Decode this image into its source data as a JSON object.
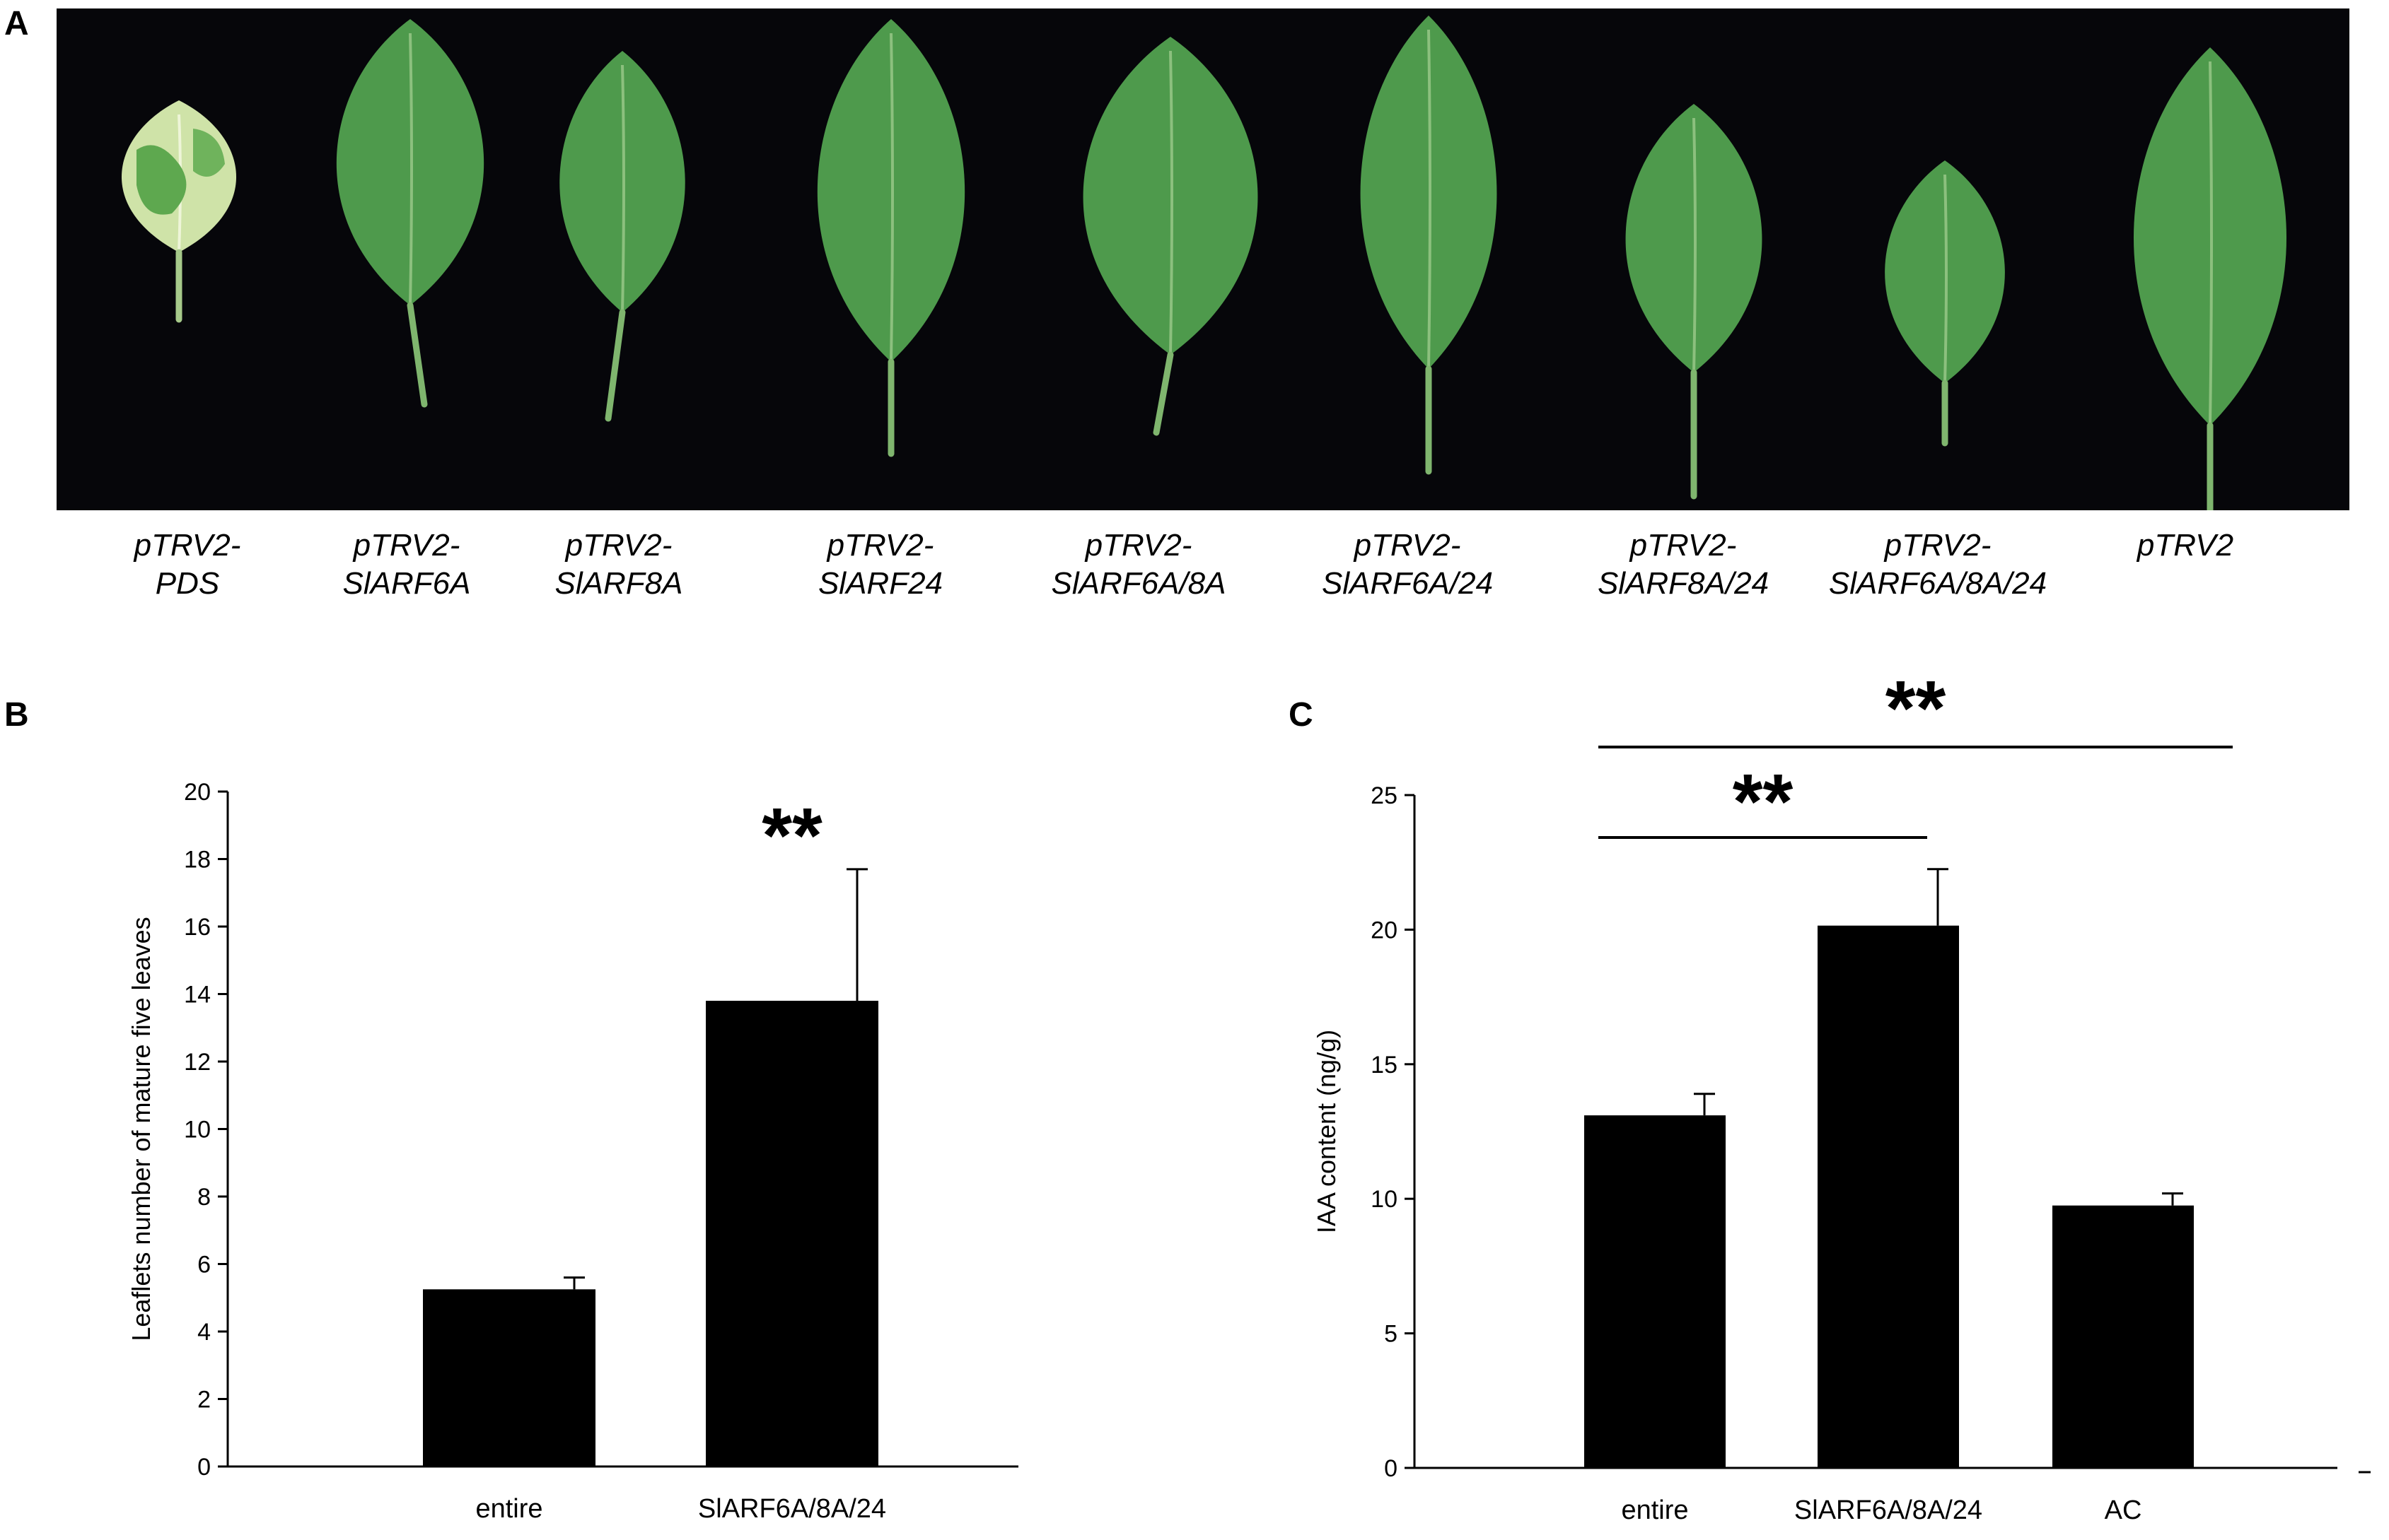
{
  "panel_labels": {
    "a": "A",
    "b": "B",
    "c": "C"
  },
  "photo": {
    "background_color": "#06060a",
    "leaf_color": "#4e9a4c",
    "pds_leaf_color": "#cfe3a8",
    "leaves": [
      {
        "label_line1": "pTRV2-",
        "label_line2": "PDS"
      },
      {
        "label_line1": "pTRV2-",
        "label_line2": "SlARF6A"
      },
      {
        "label_line1": "pTRV2-",
        "label_line2": "SlARF8A"
      },
      {
        "label_line1": "pTRV2-",
        "label_line2": "SlARF24"
      },
      {
        "label_line1": "pTRV2-",
        "label_line2": "SlARF6A/8A"
      },
      {
        "label_line1": "pTRV2-",
        "label_line2": "SlARF6A/24"
      },
      {
        "label_line1": "pTRV2-",
        "label_line2": "SlARF8A/24"
      },
      {
        "label_line1": "pTRV2-",
        "label_line2": "SlARF6A/8A/24"
      },
      {
        "label_line1": "pTRV2",
        "label_line2": ""
      }
    ]
  },
  "chart_data": [
    {
      "panel": "B",
      "type": "bar",
      "categories": [
        "entire",
        "SlARF6A/8A/24"
      ],
      "values": [
        5.25,
        13.8
      ],
      "errors": [
        0.35,
        3.9
      ],
      "ylabel": "Leaflets number of mature five leaves",
      "xlabel": "",
      "ylim": [
        0,
        20
      ],
      "yticks": [
        "0",
        "2",
        "4",
        "6",
        "8",
        "10",
        "12",
        "14",
        "16",
        "18",
        "20"
      ],
      "annotations": [
        {
          "text": "**",
          "category": "SlARF6A/8A/24"
        }
      ],
      "bar_color": "#000000",
      "grid": false
    },
    {
      "panel": "C",
      "type": "bar",
      "categories": [
        "entire",
        "SlARF6A/8A/24",
        "AC"
      ],
      "values": [
        13.1,
        20.15,
        9.75
      ],
      "errors": [
        0.8,
        2.1,
        0.45
      ],
      "ylabel": "IAA content (ng/g)",
      "xlabel": "",
      "ylim": [
        0,
        25
      ],
      "yticks": [
        "0",
        "5",
        "10",
        "15",
        "20",
        "25"
      ],
      "significance": [
        {
          "from": "entire",
          "to": "SlARF6A/8A/24",
          "text": "**"
        },
        {
          "from": "entire",
          "to": "AC",
          "text": "**"
        }
      ],
      "bar_color": "#000000",
      "grid": false
    }
  ]
}
